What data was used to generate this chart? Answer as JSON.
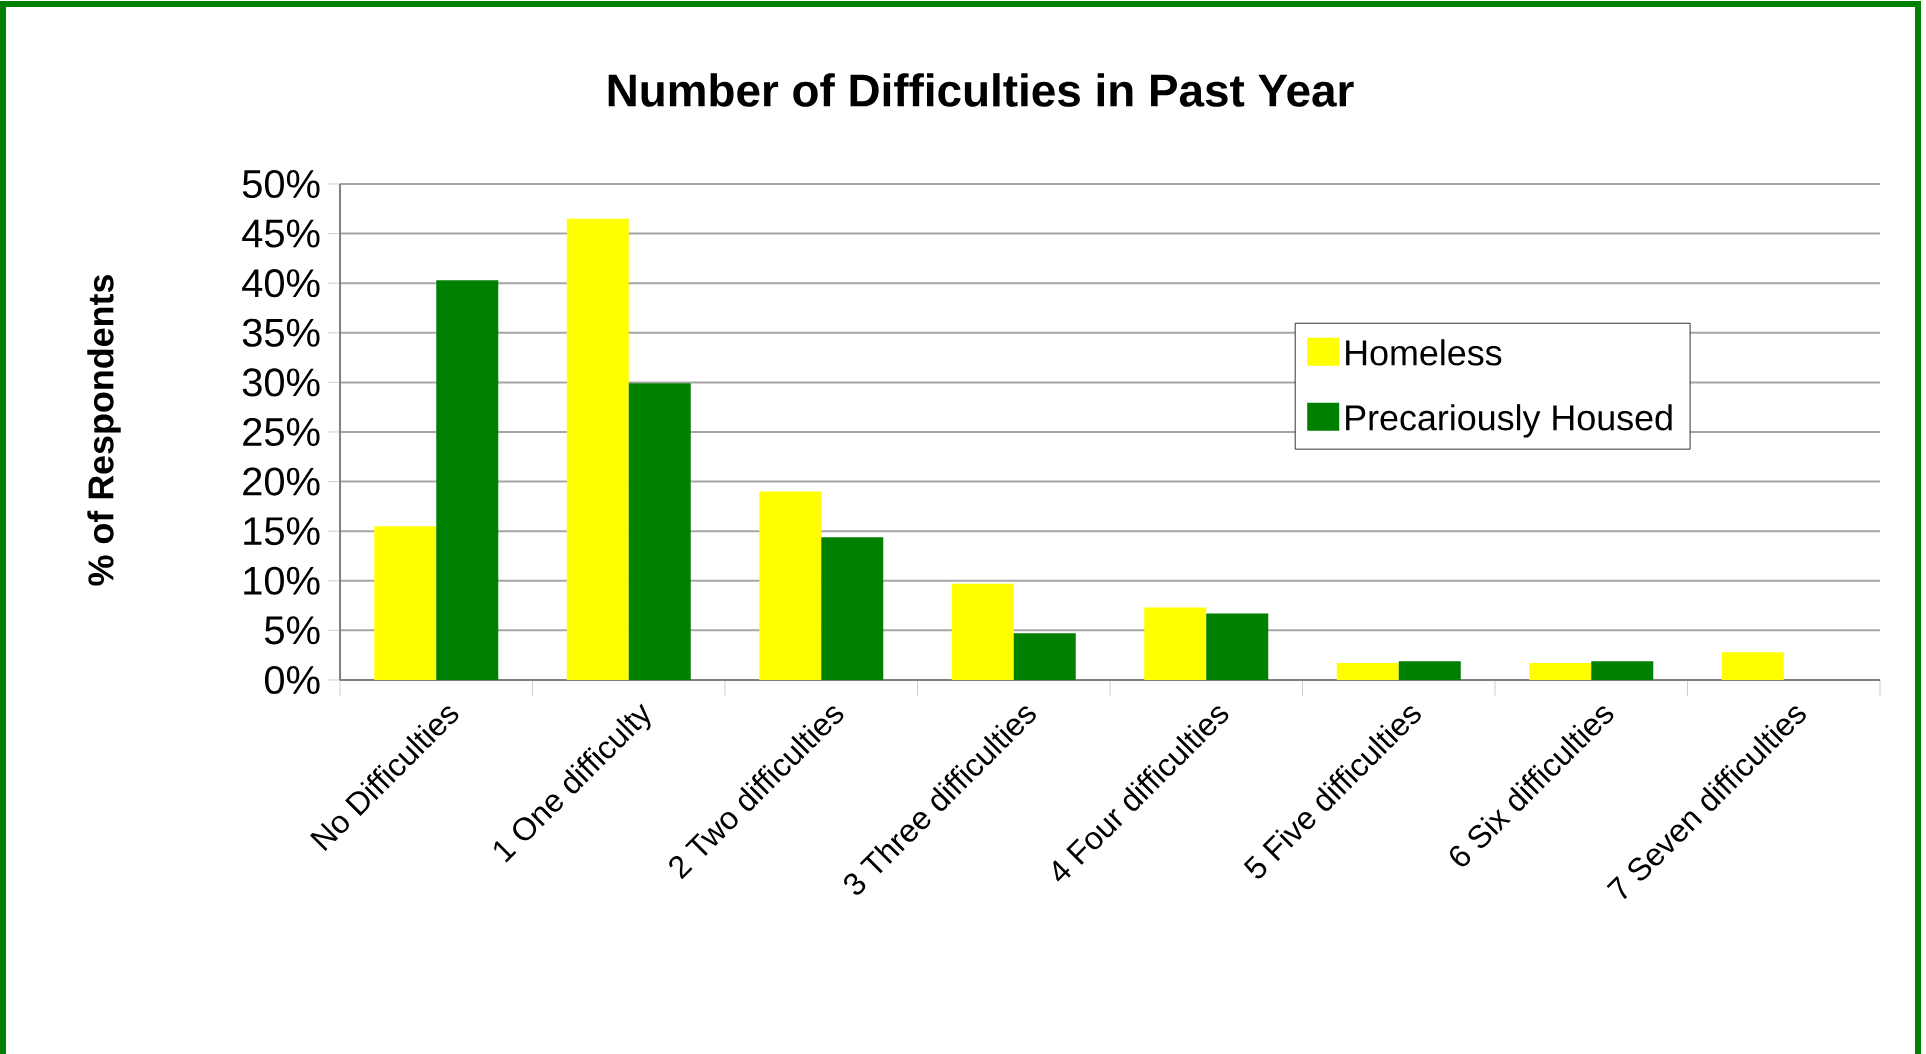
{
  "chart_data": {
    "type": "bar",
    "title": "Number of Difficulties in Past Year",
    "ylabel": "% of Respondents",
    "categories": [
      "No Difficulties",
      "1 One difficulty",
      "2 Two difficulties",
      "3 Three difficulties",
      "4 Four difficulties",
      "5 Five difficulties",
      "6 Six difficulties",
      "7 Seven difficulties"
    ],
    "series": [
      {
        "name": "Homeless",
        "color": "#ffff00",
        "values": [
          15.5,
          46.5,
          19.0,
          9.7,
          7.3,
          1.7,
          1.7,
          2.8
        ]
      },
      {
        "name": "Precariously Housed",
        "color": "#008000",
        "values": [
          40.3,
          29.9,
          14.4,
          4.7,
          6.7,
          1.9,
          1.9,
          0
        ]
      }
    ],
    "ylim": [
      0,
      50
    ],
    "yticks": [
      {
        "value": 0,
        "label": "0%"
      },
      {
        "value": 5,
        "label": "5%"
      },
      {
        "value": 10,
        "label": "10%"
      },
      {
        "value": 15,
        "label": "15%"
      },
      {
        "value": 20,
        "label": "20%"
      },
      {
        "value": 25,
        "label": "25%"
      },
      {
        "value": 30,
        "label": "30%"
      },
      {
        "value": 35,
        "label": "35%"
      },
      {
        "value": 40,
        "label": "40%"
      },
      {
        "value": 45,
        "label": "45%"
      },
      {
        "value": 50,
        "label": "50%"
      }
    ],
    "grid": "y",
    "legend": "right"
  }
}
